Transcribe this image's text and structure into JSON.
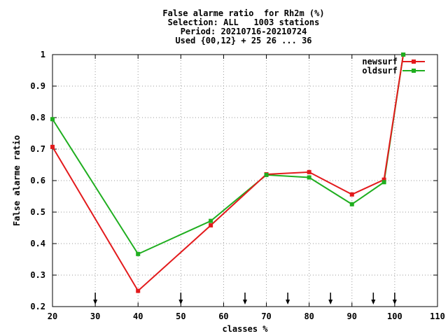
{
  "chart_data": {
    "type": "line",
    "title_lines": [
      "False alarme ratio  for Rh2m (%)",
      "Selection: ALL   1003 stations",
      "Period: 20210716-20210724",
      "Used {00,12} + 25 26 ... 36"
    ],
    "xlabel": "classes %",
    "ylabel": "False alarme ratio",
    "xlim": [
      20,
      110
    ],
    "ylim": [
      0.2,
      1.0
    ],
    "xticks": [
      20,
      30,
      40,
      50,
      60,
      70,
      80,
      90,
      100,
      110
    ],
    "yticks": [
      0.2,
      0.3,
      0.4,
      0.5,
      0.6,
      0.7,
      0.8,
      0.9,
      1.0
    ],
    "ytick_labels": [
      "0.2",
      "0.3",
      "0.4",
      "0.5",
      "0.6",
      "0.7",
      "0.8",
      "0.9",
      "1"
    ],
    "grid": true,
    "legend_position": "top-right",
    "arrow_markers_x": [
      30,
      50,
      65,
      75,
      85,
      95,
      100
    ],
    "series": [
      {
        "name": "newsurf",
        "color": "#e31a1c",
        "x": [
          20,
          40,
          57,
          70,
          80,
          90,
          97.5,
          102
        ],
        "y": [
          0.707,
          0.25,
          0.458,
          0.62,
          0.627,
          0.556,
          0.603,
          1.0
        ]
      },
      {
        "name": "oldsurf",
        "color": "#1fae1f",
        "x": [
          20,
          40,
          57,
          70,
          80,
          90,
          97.5,
          102
        ],
        "y": [
          0.795,
          0.367,
          0.472,
          0.618,
          0.61,
          0.525,
          0.595,
          1.0
        ]
      }
    ]
  }
}
